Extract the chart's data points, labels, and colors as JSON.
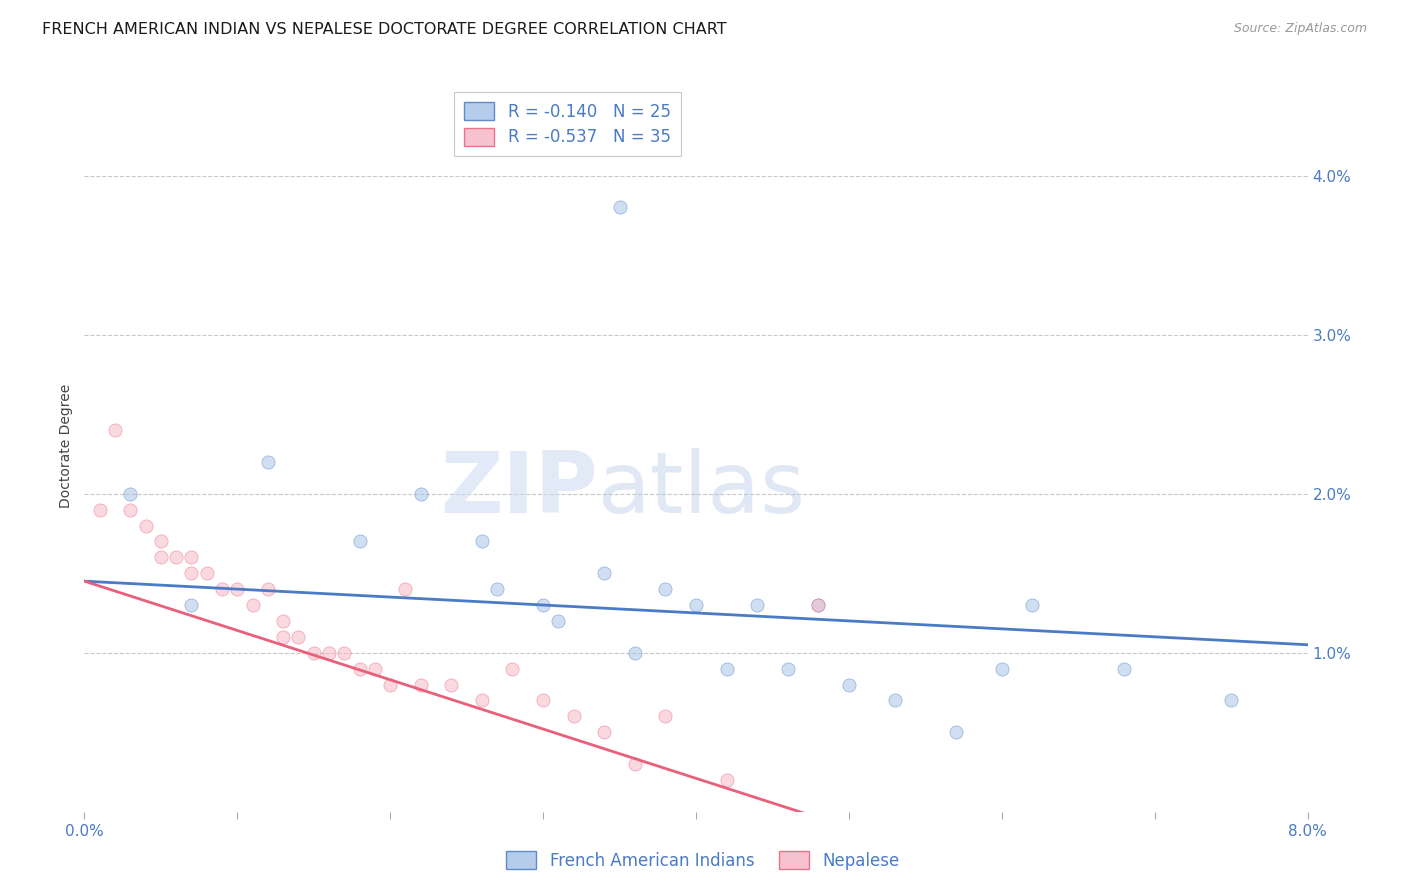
{
  "title": "FRENCH AMERICAN INDIAN VS NEPALESE DOCTORATE DEGREE CORRELATION CHART",
  "source": "Source: ZipAtlas.com",
  "ylabel": "Doctorate Degree",
  "xmin": 0.0,
  "xmax": 0.08,
  "ymin": 0.0,
  "ymax": 0.046,
  "yticks": [
    0.01,
    0.02,
    0.03,
    0.04
  ],
  "ytick_labels": [
    "1.0%",
    "2.0%",
    "3.0%",
    "4.0%"
  ],
  "xticks": [
    0.0,
    0.01,
    0.02,
    0.03,
    0.04,
    0.05,
    0.06,
    0.07,
    0.08
  ],
  "xtick_labels": [
    "0.0%",
    "",
    "",
    "",
    "",
    "",
    "",
    "",
    "8.0%"
  ],
  "blue_color": "#aac4e8",
  "pink_color": "#f5b8c8",
  "blue_line_color": "#4a7bc4",
  "pink_line_color": "#e8607a",
  "legend_r1": "R = -0.140",
  "legend_n1": "N = 25",
  "legend_r2": "R = -0.537",
  "legend_n2": "N = 35",
  "label1": "French American Indians",
  "label2": "Nepalese",
  "watermark_zip": "ZIP",
  "watermark_atlas": "atlas",
  "blue_x": [
    0.003,
    0.007,
    0.012,
    0.018,
    0.022,
    0.026,
    0.027,
    0.03,
    0.031,
    0.034,
    0.036,
    0.038,
    0.04,
    0.042,
    0.044,
    0.046,
    0.048,
    0.05,
    0.053,
    0.057,
    0.06,
    0.062,
    0.068,
    0.075,
    0.035
  ],
  "blue_y": [
    0.02,
    0.013,
    0.022,
    0.017,
    0.02,
    0.017,
    0.014,
    0.013,
    0.012,
    0.015,
    0.01,
    0.014,
    0.013,
    0.009,
    0.013,
    0.009,
    0.013,
    0.008,
    0.007,
    0.005,
    0.009,
    0.013,
    0.009,
    0.007,
    0.038
  ],
  "pink_x": [
    0.001,
    0.002,
    0.003,
    0.004,
    0.005,
    0.005,
    0.006,
    0.007,
    0.007,
    0.008,
    0.009,
    0.01,
    0.011,
    0.012,
    0.013,
    0.013,
    0.014,
    0.015,
    0.016,
    0.017,
    0.018,
    0.019,
    0.02,
    0.021,
    0.022,
    0.024,
    0.026,
    0.028,
    0.03,
    0.032,
    0.034,
    0.036,
    0.038,
    0.042,
    0.048
  ],
  "pink_y": [
    0.019,
    0.024,
    0.019,
    0.018,
    0.017,
    0.016,
    0.016,
    0.015,
    0.016,
    0.015,
    0.014,
    0.014,
    0.013,
    0.014,
    0.011,
    0.012,
    0.011,
    0.01,
    0.01,
    0.01,
    0.009,
    0.009,
    0.008,
    0.014,
    0.008,
    0.008,
    0.007,
    0.009,
    0.007,
    0.006,
    0.005,
    0.003,
    0.006,
    0.002,
    0.013
  ],
  "title_fontsize": 11.5,
  "axis_label_fontsize": 10,
  "tick_fontsize": 11,
  "marker_size": 90,
  "alpha": 0.55,
  "background_color": "#ffffff",
  "grid_color": "#c8c8c8"
}
